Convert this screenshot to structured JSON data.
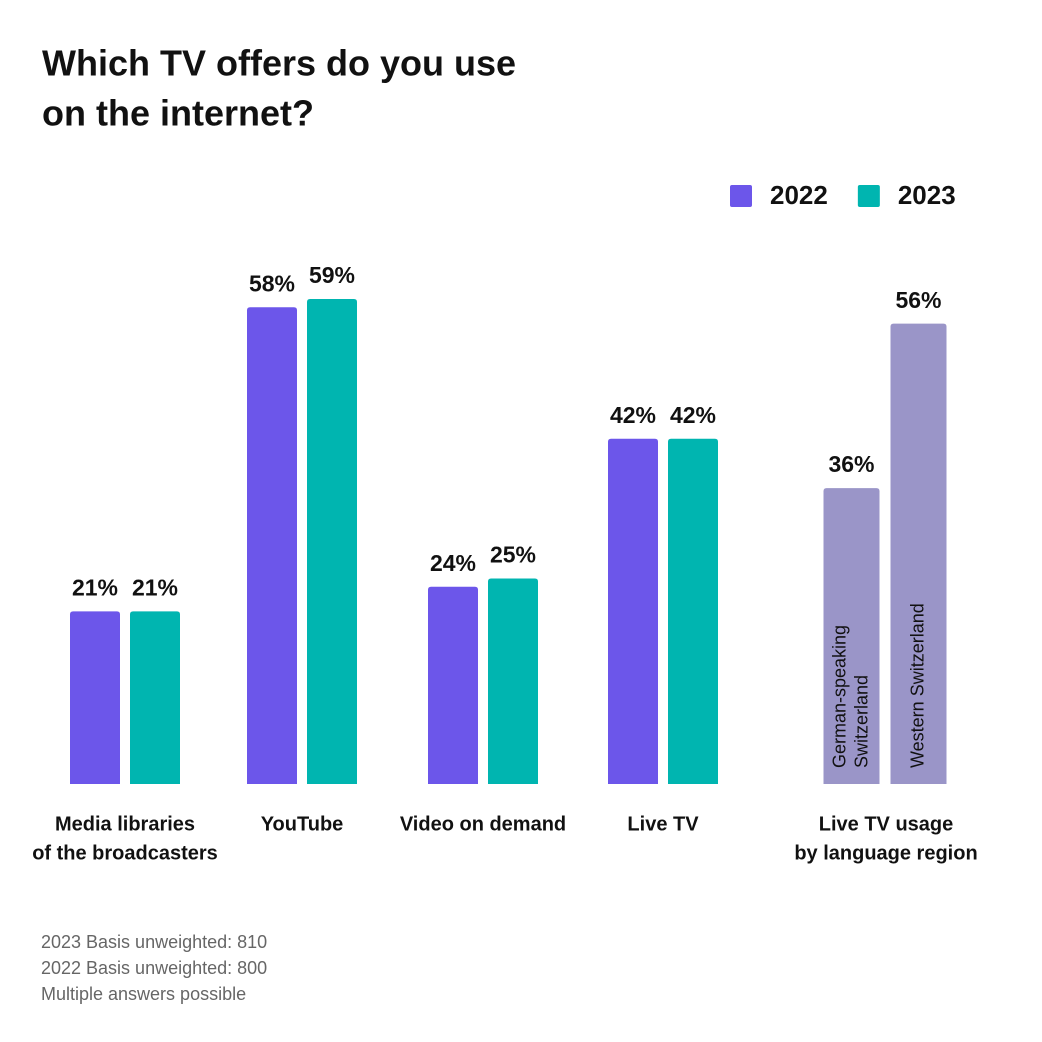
{
  "chart_data": {
    "type": "bar",
    "title": [
      "Which TV offers do you use",
      "on the internet?"
    ],
    "categories": [
      [
        "Media libraries",
        "of the broadcasters"
      ],
      [
        "YouTube"
      ],
      [
        "Video on demand"
      ],
      [
        "Live TV"
      ]
    ],
    "series": [
      {
        "name": "2022",
        "color": "#6c56ea",
        "values": [
          21,
          58,
          24,
          42
        ],
        "value_labels": [
          "21%",
          "58%",
          "24%",
          "42%"
        ]
      },
      {
        "name": "2023",
        "color": "#00b5b0",
        "values": [
          21,
          59,
          25,
          42
        ],
        "value_labels": [
          "21%",
          "59%",
          "25%",
          "42%"
        ]
      }
    ],
    "regions": {
      "label": [
        "Live TV usage",
        "by language region"
      ],
      "color": "#9a95c8",
      "categories": [
        [
          "German-speaking",
          "Switzerland"
        ],
        [
          "Western Switzerland"
        ]
      ],
      "values": [
        36,
        56
      ],
      "value_labels": [
        "36%",
        "56%"
      ]
    },
    "notes": [
      "2023 Basis unweighted: 810",
      "2022 Basis unweighted: 800",
      "Multiple answers possible"
    ]
  }
}
